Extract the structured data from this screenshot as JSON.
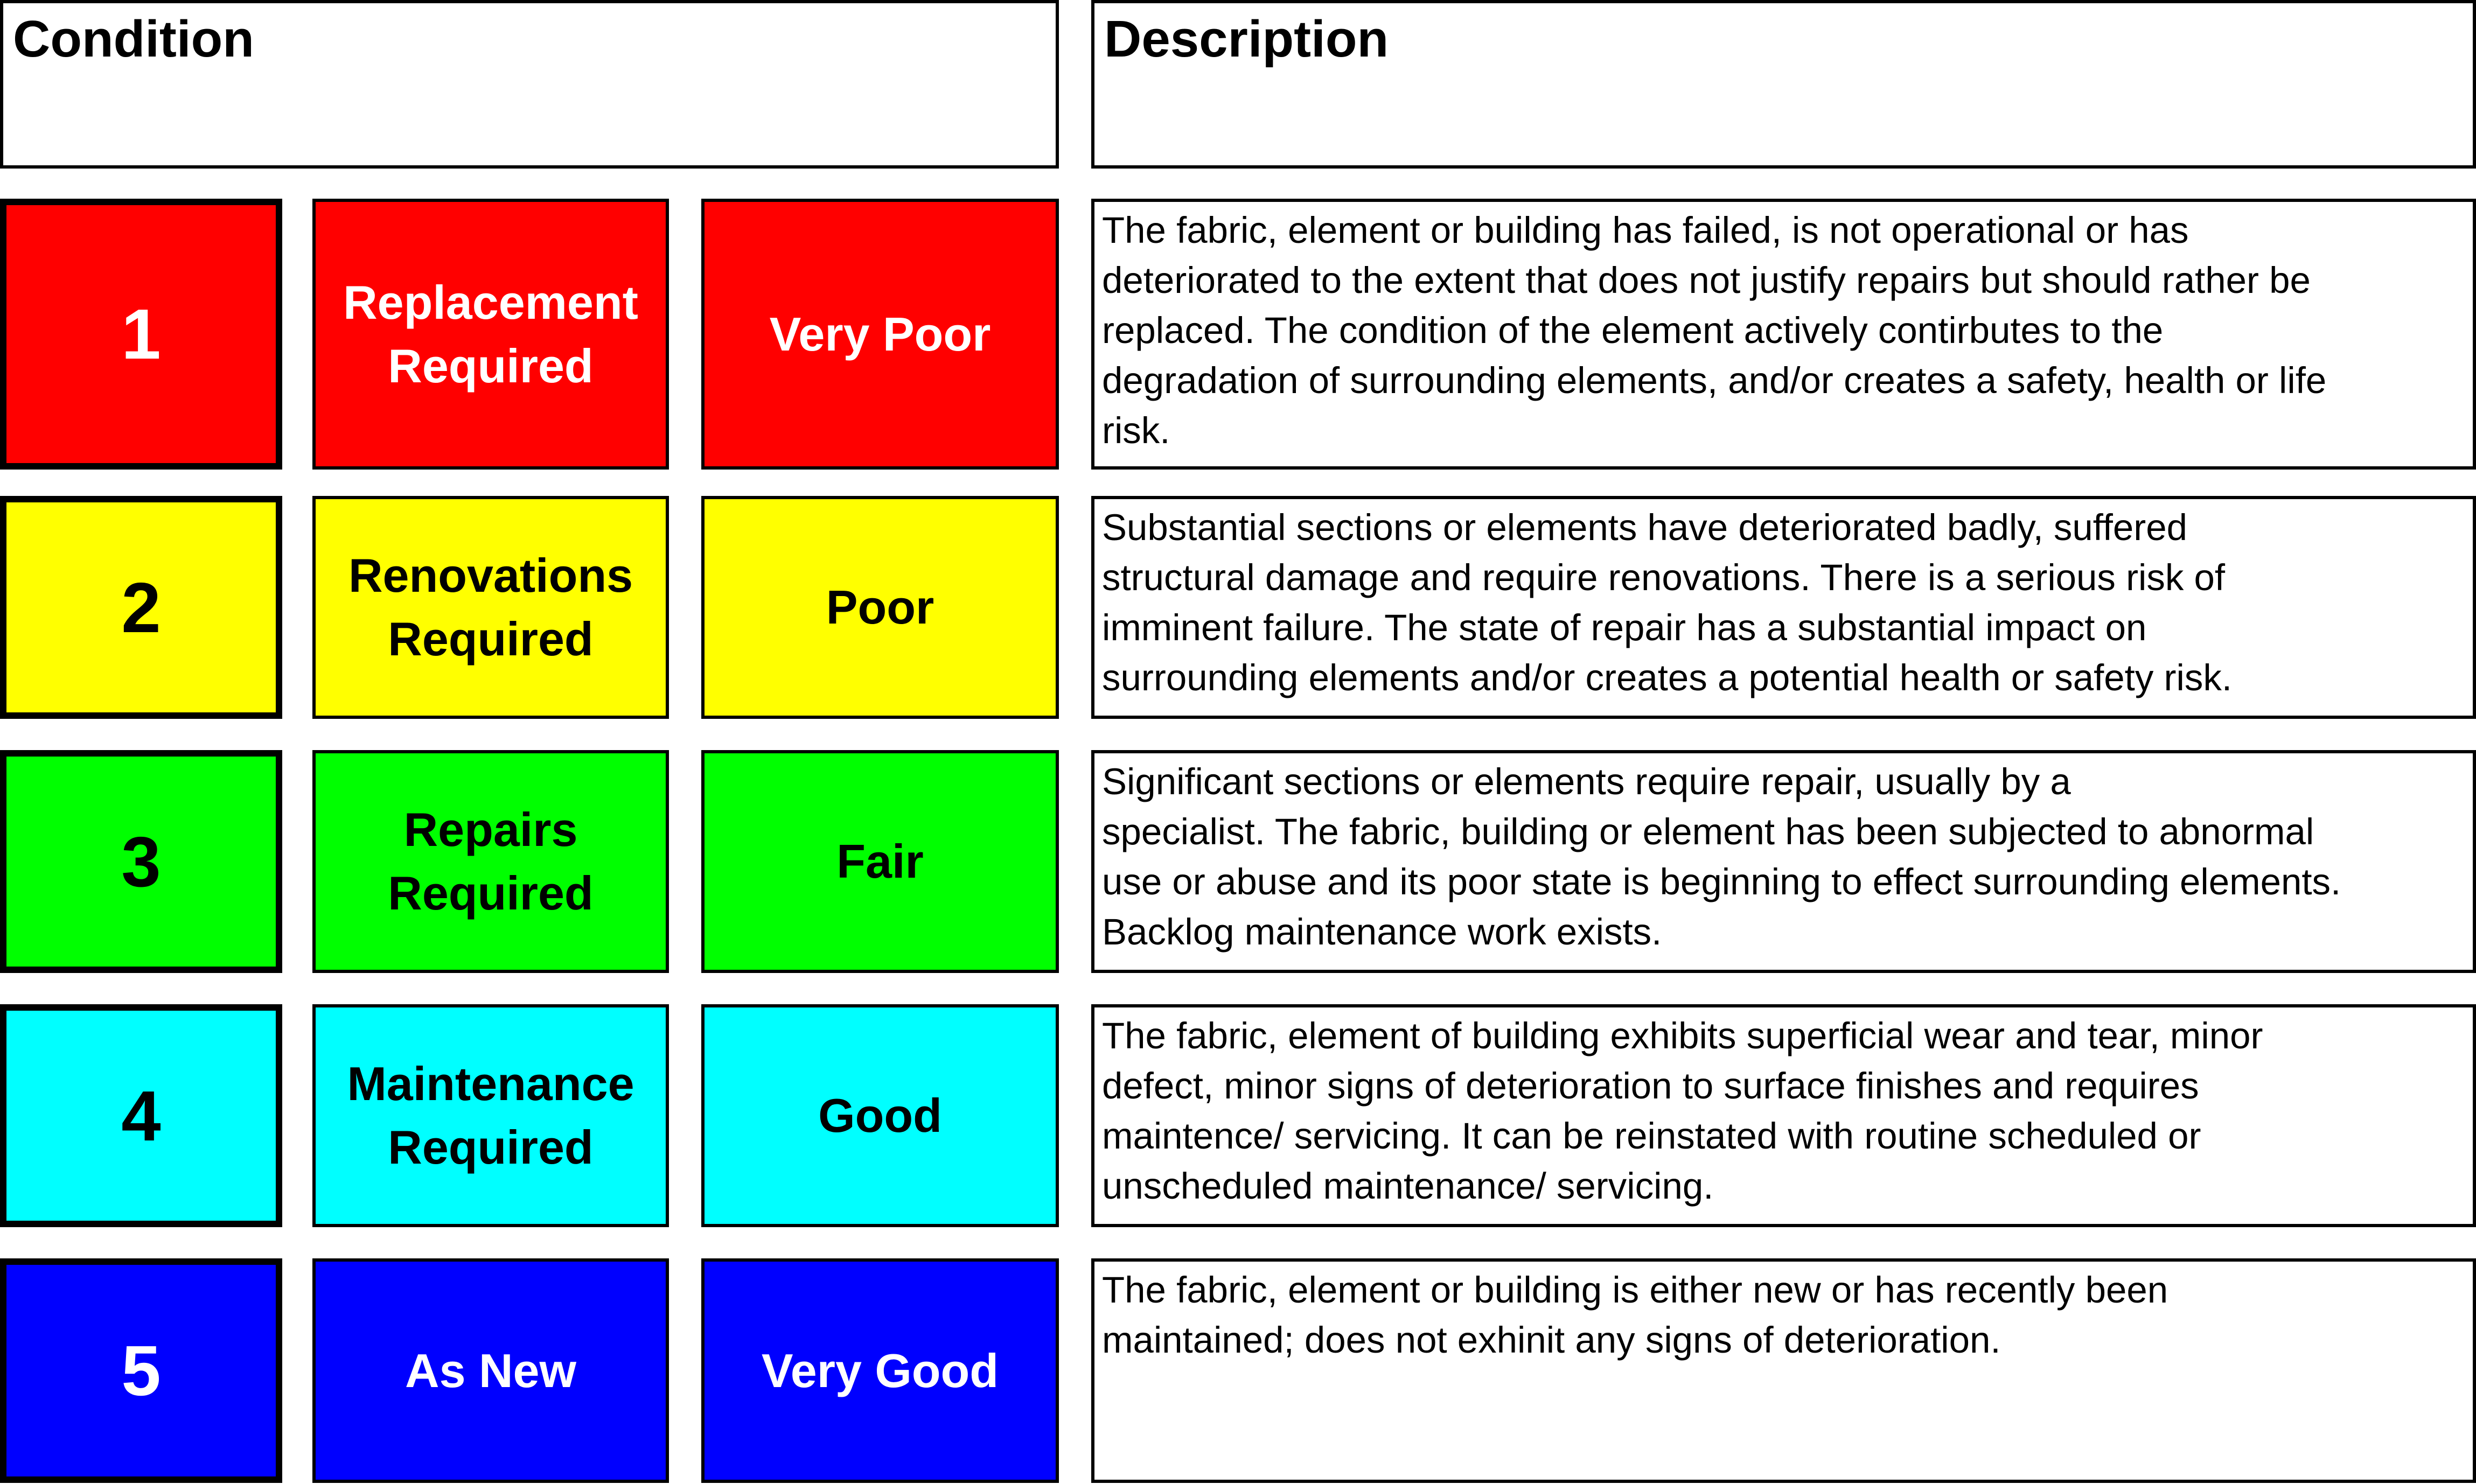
{
  "header": {
    "condition": "Condition",
    "description": "Description"
  },
  "rows": [
    {
      "number": "1",
      "action": "Replacement Required",
      "rating": "Very Poor",
      "color": "#ff0000",
      "text_color": "#ffffff",
      "description": [
        "The fabric, element or building has failed, is not operational or has",
        "deteriorated to the extent that does not justify repairs but should rather be",
        "replaced. The condition of the element actively contirbutes to the",
        "degradation of surrounding elements, and/or creates a safety, health or life",
        "risk."
      ]
    },
    {
      "number": "2",
      "action": "Renovations Required",
      "rating": "Poor",
      "color": "#ffff00",
      "text_color": "#000000",
      "description": [
        "Substantial sections or elements have deteriorated badly, suffered",
        "structural damage and require renovations. There is a serious risk of",
        "imminent failure. The state of repair has a substantial impact on",
        "surrounding elements and/or creates a potential health or safety risk."
      ]
    },
    {
      "number": "3",
      "action": "Repairs Required",
      "rating": "Fair",
      "color": "#00ff00",
      "text_color": "#000000",
      "description": [
        "Significant sections or elements require repair, usually by a",
        "specialist. The fabric, building or element has been subjected to abnormal",
        "use or abuse and its poor state is beginning to effect surrounding elements.",
        "Backlog maintenance work exists."
      ]
    },
    {
      "number": "4",
      "action": "Maintenance Required",
      "rating": "Good",
      "color": "#00ffff",
      "text_color": "#000000",
      "description": [
        "The fabric, element of building exhibits superficial wear and tear, minor",
        "defect, minor signs of deterioration to surface finishes and requires",
        "maintence/ servicing. It can be reinstated with routine scheduled or",
        "unscheduled maintenance/ servicing."
      ]
    },
    {
      "number": "5",
      "action": "As New",
      "rating": "Very Good",
      "color": "#0000ff",
      "text_color": "#ffffff",
      "description": [
        "The fabric, element or building is either new or has recently been",
        "maintained; does not exhinit any signs of deterioration."
      ]
    }
  ]
}
